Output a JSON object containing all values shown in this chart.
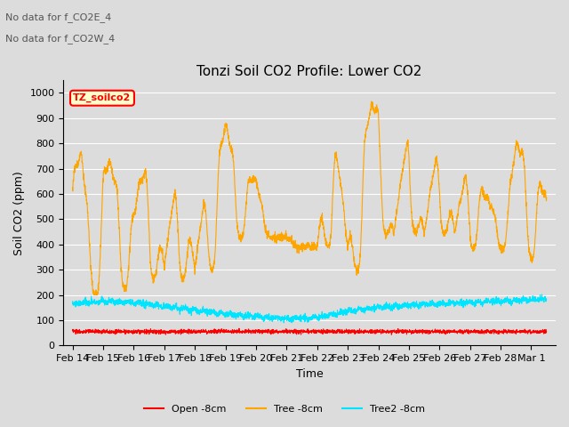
{
  "title": "Tonzi Soil CO2 Profile: Lower CO2",
  "ylabel": "Soil CO2 (ppm)",
  "xlabel": "Time",
  "ylim": [
    0,
    1050
  ],
  "yticks": [
    0,
    100,
    200,
    300,
    400,
    500,
    600,
    700,
    800,
    900,
    1000
  ],
  "annotation_lines": [
    "No data for f_CO2E_4",
    "No data for f_CO2W_4"
  ],
  "legend_label": "TZ_soilco2",
  "series": {
    "open": {
      "label": "Open -8cm",
      "color": "#ff0000"
    },
    "tree": {
      "label": "Tree -8cm",
      "color": "#ffa500"
    },
    "tree2": {
      "label": "Tree2 -8cm",
      "color": "#00e5ff"
    }
  },
  "plot_bg_color": "#dcdcdc",
  "grid_color": "#ffffff",
  "title_fontsize": 11,
  "axis_fontsize": 9,
  "tick_fontsize": 8
}
